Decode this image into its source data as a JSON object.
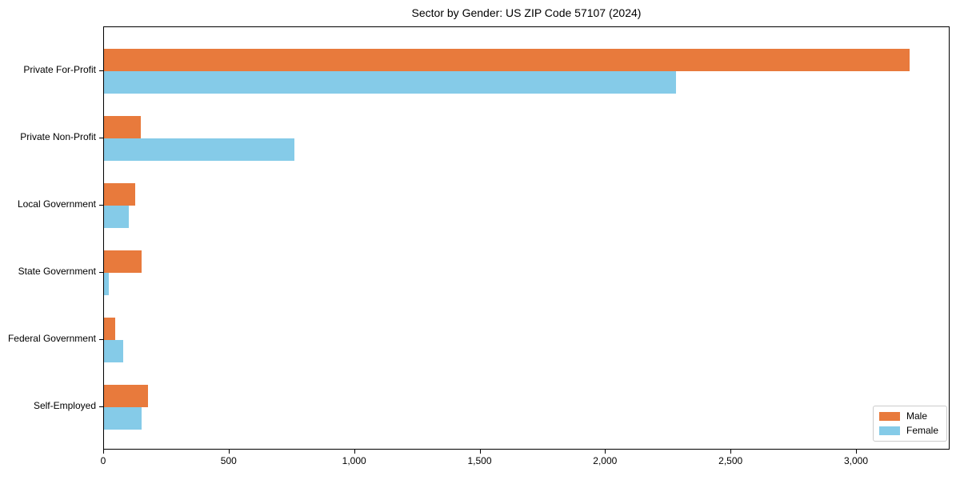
{
  "title": "Sector by Gender: US ZIP Code 57107 (2024)",
  "chart_data": {
    "type": "bar",
    "orientation": "horizontal",
    "title": "Sector by Gender: US ZIP Code 57107 (2024)",
    "xlabel": "",
    "ylabel": "",
    "categories": [
      "Private For-Profit",
      "Private Non-Profit",
      "Local Government",
      "State Government",
      "Federal Government",
      "Self-Employed"
    ],
    "series": [
      {
        "name": "Male",
        "color": "#e87a3c",
        "values": [
          3210,
          145,
          125,
          150,
          45,
          175
        ]
      },
      {
        "name": "Female",
        "color": "#85cbe8",
        "values": [
          2280,
          760,
          100,
          20,
          75,
          150
        ]
      }
    ],
    "xlim": [
      0,
      3373
    ],
    "xticks": [
      0,
      500,
      1000,
      1500,
      2000,
      2500,
      3000
    ],
    "xtick_labels": [
      "0",
      "500",
      "1,000",
      "1,500",
      "2,000",
      "2,500",
      "3,000"
    ],
    "grid": false,
    "background": "#ffffff",
    "legend_position": "lower right"
  },
  "legend": {
    "items": [
      {
        "label": "Male",
        "color": "#e87a3c"
      },
      {
        "label": "Female",
        "color": "#85cbe8"
      }
    ]
  }
}
